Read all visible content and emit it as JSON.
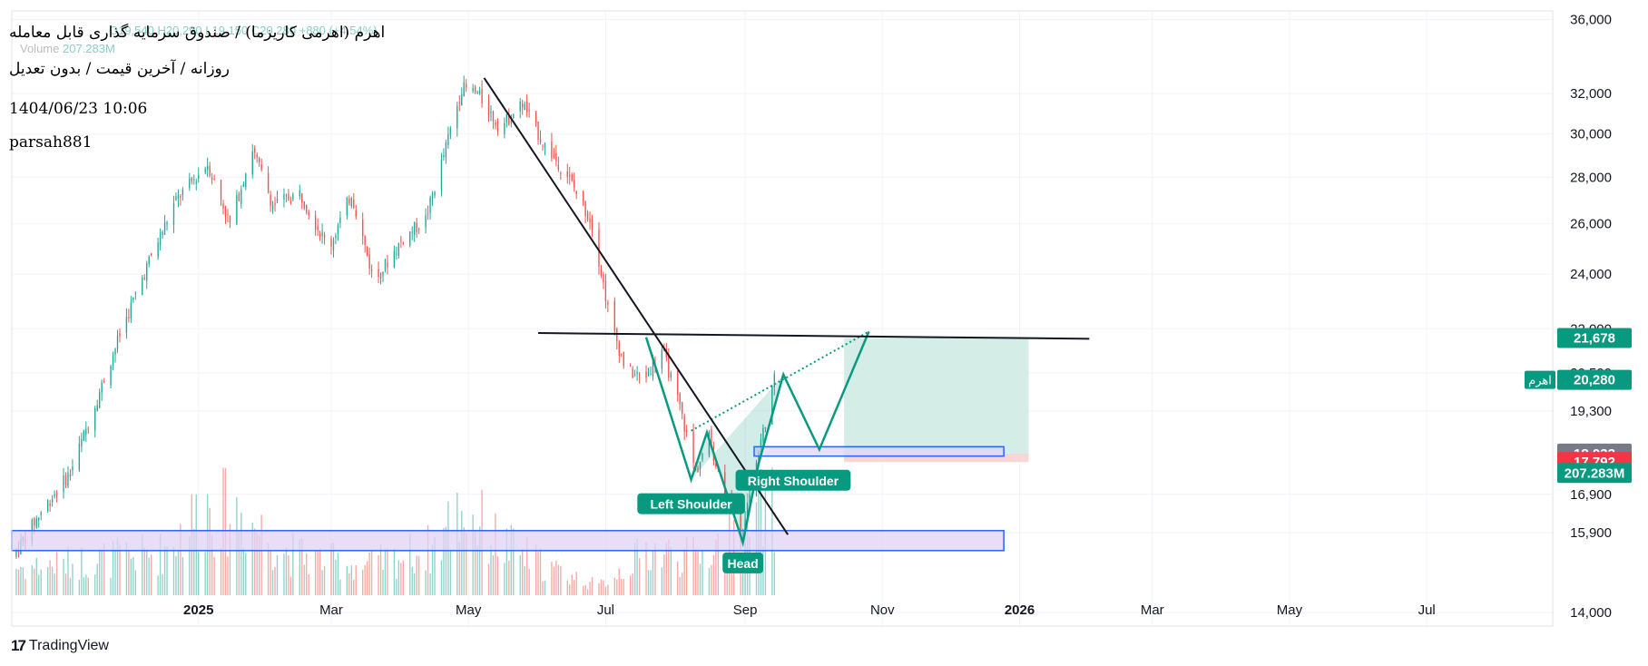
{
  "header": {
    "title": "اهرم (اهرمی کاریزما) / صندوق سرمایه گذاری قابل معامله",
    "ohlc": "O19,540 H20,290 L19,150 C20,280 +880 (+4.54%)",
    "volume_label": "Volume",
    "volume_value": "207.283M",
    "subtitle": "روزانه / آخرین قیمت / بدون تعدیل",
    "date": "1404/06/23 10:06",
    "author": "parsah881"
  },
  "brand": "TradingView",
  "colors": {
    "up": "#26a69a",
    "down": "#ef5350",
    "pattern": "#089981",
    "zone_fill": "#e2d2f5",
    "zone_border": "#2962ff",
    "target_fill": "#cdeae2",
    "stop_fill": "#f7d2d2"
  },
  "chart_data": {
    "type": "candlestick",
    "title": "اهرم (اهرمی کاریزما)",
    "y_axis_scale": "log",
    "ylim": [
      13700,
      36500
    ],
    "y_ticks": [
      "36,000",
      "32,000",
      "30,000",
      "28,000",
      "26,000",
      "24,000",
      "22,000",
      "20,500",
      "19,300",
      "16,900",
      "15,900",
      "14,000"
    ],
    "y_tick_values": [
      36000,
      32000,
      30000,
      28000,
      26000,
      24000,
      22000,
      20500,
      19300,
      16900,
      15900,
      14000
    ],
    "x_ticks": [
      "2025",
      "Mar",
      "May",
      "Jul",
      "Sep",
      "Nov",
      "2026",
      "Mar",
      "May",
      "Jul"
    ],
    "x_tick_dates": [
      "2025-01-01",
      "2025-03-01",
      "2025-05-01",
      "2025-07-01",
      "2025-09-01",
      "2025-11-01",
      "2026-01-01",
      "2026-03-01",
      "2026-05-01",
      "2026-07-01"
    ],
    "x_tick_bold": [
      true,
      false,
      false,
      false,
      false,
      false,
      true,
      false,
      false,
      false
    ],
    "xlim": [
      "2024-10-10",
      "2026-08-26"
    ],
    "price_labels": [
      {
        "label": "21,678",
        "value": 21678,
        "color": "#089981"
      },
      {
        "label": "20,280",
        "value": 20280,
        "color": "#089981",
        "tag": "اهرم"
      },
      {
        "label": "18,033",
        "value": 18033,
        "color": "#787b86"
      },
      {
        "label": "17,792",
        "value": 17792,
        "color": "#f23645"
      },
      {
        "label": "207.283M",
        "value": null,
        "color": "#089981"
      }
    ],
    "price_series": [
      {
        "date": "2024-10-10",
        "close": 15300
      },
      {
        "date": "2024-10-25",
        "close": 16600
      },
      {
        "date": "2024-11-05",
        "close": 17500
      },
      {
        "date": "2024-11-15",
        "close": 19300
      },
      {
        "date": "2024-11-28",
        "close": 22000
      },
      {
        "date": "2024-12-10",
        "close": 24500
      },
      {
        "date": "2024-12-22",
        "close": 27000
      },
      {
        "date": "2025-01-05",
        "close": 28600
      },
      {
        "date": "2025-01-15",
        "close": 26000
      },
      {
        "date": "2025-01-25",
        "close": 29300
      },
      {
        "date": "2025-02-03",
        "close": 26800
      },
      {
        "date": "2025-02-15",
        "close": 27300
      },
      {
        "date": "2025-02-28",
        "close": 25000
      },
      {
        "date": "2025-03-10",
        "close": 27300
      },
      {
        "date": "2025-03-20",
        "close": 23700
      },
      {
        "date": "2025-04-02",
        "close": 25400
      },
      {
        "date": "2025-04-12",
        "close": 26200
      },
      {
        "date": "2025-04-20",
        "close": 29000
      },
      {
        "date": "2025-04-28",
        "close": 32300
      },
      {
        "date": "2025-05-05",
        "close": 32000
      },
      {
        "date": "2025-05-15",
        "close": 30300
      },
      {
        "date": "2025-05-25",
        "close": 31500
      },
      {
        "date": "2025-06-03",
        "close": 29600
      },
      {
        "date": "2025-06-14",
        "close": 28100
      },
      {
        "date": "2025-06-25",
        "close": 26000
      },
      {
        "date": "2025-07-03",
        "close": 22300
      },
      {
        "date": "2025-07-10",
        "close": 20600
      },
      {
        "date": "2025-07-18",
        "close": 20300
      },
      {
        "date": "2025-07-26",
        "close": 21300
      },
      {
        "date": "2025-08-03",
        "close": 19400
      },
      {
        "date": "2025-08-10",
        "close": 17500
      },
      {
        "date": "2025-08-16",
        "close": 18500
      },
      {
        "date": "2025-08-21",
        "close": 17300
      },
      {
        "date": "2025-08-26",
        "close": 16700
      },
      {
        "date": "2025-08-30",
        "close": 15800
      },
      {
        "date": "2025-09-04",
        "close": 17200
      },
      {
        "date": "2025-09-09",
        "close": 18700
      },
      {
        "date": "2025-09-14",
        "close": 20280
      }
    ],
    "volume_ylim": [
      0,
      240000000
    ],
    "volume": [
      {
        "date": "2024-10-20",
        "value": 60000000
      },
      {
        "date": "2024-12-15",
        "value": 90000000
      },
      {
        "date": "2025-01-05",
        "value": 190000000
      },
      {
        "date": "2025-01-20",
        "value": 170000000
      },
      {
        "date": "2025-02-10",
        "value": 90000000
      },
      {
        "date": "2025-03-15",
        "value": 60000000
      },
      {
        "date": "2025-04-15",
        "value": 100000000
      },
      {
        "date": "2025-04-28",
        "value": 185000000
      },
      {
        "date": "2025-05-15",
        "value": 110000000
      },
      {
        "date": "2025-06-10",
        "value": 50000000
      },
      {
        "date": "2025-06-28",
        "value": 20000000
      },
      {
        "date": "2025-07-20",
        "value": 95000000
      },
      {
        "date": "2025-08-10",
        "value": 80000000
      },
      {
        "date": "2025-08-30",
        "value": 130000000
      },
      {
        "date": "2025-09-14",
        "value": 207283000
      }
    ],
    "annotations": {
      "labels": [
        "Left Shoulder",
        "Head",
        "Right Shoulder"
      ],
      "pattern_points": [
        {
          "date": "2025-07-19",
          "value": 21700
        },
        {
          "date": "2025-08-08",
          "value": 17300
        },
        {
          "date": "2025-08-15",
          "value": 18650
        },
        {
          "date": "2025-08-31",
          "value": 15650
        },
        {
          "date": "2025-09-07",
          "value": 17750
        },
        {
          "date": "2025-09-18",
          "value": 20450
        },
        {
          "date": "2025-10-04",
          "value": 18150
        },
        {
          "date": "2025-10-26",
          "value": 21900
        }
      ],
      "neckline_points": [
        {
          "date": "2025-08-08",
          "value": 18700
        },
        {
          "date": "2025-10-26",
          "value": 21900
        }
      ],
      "resistance_line": [
        {
          "date": "2025-06-01",
          "value": 21850
        },
        {
          "date": "2026-02-01",
          "value": 21650
        }
      ],
      "trendline": [
        {
          "date": "2025-05-08",
          "value": 32800
        },
        {
          "date": "2025-09-20",
          "value": 15850
        }
      ],
      "support_zone": {
        "from": "2024-10-10",
        "to": "2025-12-25",
        "low": 15450,
        "high": 15950
      },
      "entry_zone": {
        "from": "2025-09-05",
        "to": "2025-12-25",
        "low": 17960,
        "high": 18230
      },
      "target_box": {
        "from": "2025-10-15",
        "to": "2026-01-05",
        "low": 18033,
        "high": 21678
      },
      "stop_box": {
        "from": "2025-10-15",
        "to": "2026-01-05",
        "low": 17792,
        "high": 18033
      }
    }
  }
}
